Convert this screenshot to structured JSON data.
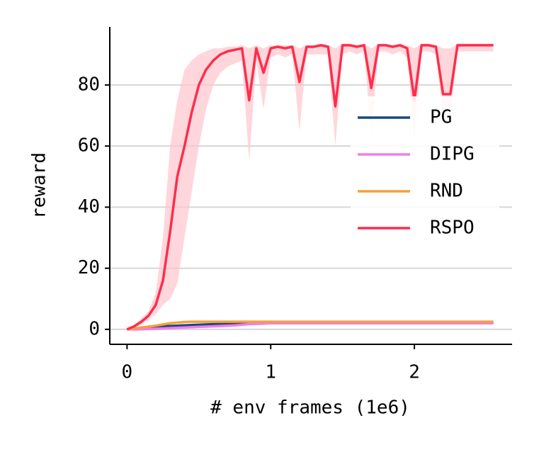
{
  "chart_data": {
    "type": "line",
    "xlabel": "# env frames (1e6)",
    "ylabel": "reward",
    "x": [
      0,
      0.05,
      0.1,
      0.15,
      0.2,
      0.25,
      0.3,
      0.35,
      0.4,
      0.45,
      0.5,
      0.55,
      0.6,
      0.65,
      0.7,
      0.75,
      0.8,
      0.85,
      0.9,
      0.95,
      1.0,
      1.05,
      1.1,
      1.15,
      1.2,
      1.25,
      1.3,
      1.35,
      1.4,
      1.45,
      1.5,
      1.55,
      1.6,
      1.65,
      1.7,
      1.75,
      1.8,
      1.85,
      1.9,
      1.95,
      2.0,
      2.05,
      2.1,
      2.15,
      2.2,
      2.25,
      2.3,
      2.35,
      2.4,
      2.45,
      2.5,
      2.55
    ],
    "series": [
      {
        "name": "PG",
        "color": "#1a4a7a",
        "values": [
          0,
          0.2,
          0.4,
          0.6,
          0.8,
          1,
          1.1,
          1.2,
          1.3,
          1.4,
          1.5,
          1.6,
          1.7,
          1.8,
          1.9,
          2,
          2,
          2,
          2,
          2,
          2,
          2,
          2,
          2,
          2,
          2,
          2,
          2,
          2,
          2,
          2,
          2,
          2,
          2,
          2,
          2,
          2,
          2,
          2,
          2,
          2,
          2,
          2,
          2,
          2,
          2,
          2,
          2,
          2,
          2,
          2,
          2
        ]
      },
      {
        "name": "DIPG",
        "color": "#f07cf0",
        "values": [
          0,
          0,
          0,
          0.1,
          0.2,
          0.3,
          0.4,
          0.5,
          0.6,
          0.7,
          0.8,
          0.9,
          1,
          1.1,
          1.2,
          1.3,
          1.5,
          1.7,
          1.8,
          1.9,
          2,
          2,
          2,
          2,
          2,
          2,
          2,
          2,
          2,
          2,
          2,
          2,
          2,
          2,
          2,
          2,
          2,
          2,
          2,
          2,
          2,
          2,
          2,
          2,
          2,
          2,
          2,
          2,
          2,
          2,
          2,
          2
        ]
      },
      {
        "name": "RND",
        "color": "#f4a03c",
        "values": [
          0,
          0.3,
          0.6,
          0.9,
          1.2,
          1.6,
          2,
          2.2,
          2.4,
          2.5,
          2.5,
          2.5,
          2.5,
          2.5,
          2.5,
          2.5,
          2.5,
          2.5,
          2.5,
          2.5,
          2.5,
          2.5,
          2.5,
          2.5,
          2.5,
          2.5,
          2.5,
          2.5,
          2.5,
          2.5,
          2.5,
          2.5,
          2.5,
          2.5,
          2.5,
          2.5,
          2.5,
          2.5,
          2.5,
          2.5,
          2.5,
          2.5,
          2.5,
          2.5,
          2.5,
          2.5,
          2.5,
          2.5,
          2.5,
          2.5,
          2.5,
          2.5
        ]
      },
      {
        "name": "RSPO",
        "color": "#ff2d4b",
        "band_color": "#ffc4cc",
        "values": [
          0,
          1,
          2.5,
          4.5,
          8,
          16,
          32,
          50,
          60,
          71,
          80,
          85,
          88,
          90,
          91,
          91.5,
          92,
          75,
          92,
          84,
          92,
          92.5,
          92,
          92.5,
          81,
          92.5,
          92.5,
          93,
          92.5,
          73,
          93,
          93,
          92.5,
          93,
          79,
          93,
          93,
          92.5,
          93,
          92,
          75,
          93,
          93,
          92.5,
          77,
          77,
          93,
          93,
          93,
          93,
          93,
          93
        ],
        "lower": [
          0,
          0.5,
          1.5,
          3,
          5,
          8,
          10,
          15,
          30,
          45,
          60,
          72,
          80,
          84,
          86,
          87,
          88,
          55,
          88,
          72,
          89,
          90,
          89,
          90,
          65,
          90,
          90,
          90,
          90,
          60,
          90,
          91,
          90,
          91,
          64,
          91,
          91,
          90,
          91,
          89,
          62,
          91,
          91,
          90,
          70,
          70,
          91,
          91,
          91,
          91,
          91,
          91
        ],
        "upper": [
          0,
          1.5,
          3.5,
          6,
          12,
          30,
          60,
          75,
          85,
          88,
          90,
          91,
          92,
          92,
          92.5,
          92.5,
          93,
          92,
          93,
          92,
          93,
          93,
          93,
          93,
          92,
          93,
          93,
          93.5,
          93,
          92,
          93.5,
          93.5,
          93,
          93.5,
          92,
          93.5,
          93.5,
          93,
          93.5,
          93,
          92,
          93.5,
          93.5,
          93,
          92,
          92,
          93.5,
          93.5,
          93.5,
          93.5,
          93.5,
          93.5
        ]
      }
    ],
    "xlim": [
      -0.12,
      2.68
    ],
    "ylim": [
      -4.9,
      99
    ],
    "xticks": [
      0,
      1,
      2
    ],
    "yticks": [
      0,
      20,
      40,
      60,
      80
    ],
    "grid": "y",
    "legend": "center right"
  }
}
